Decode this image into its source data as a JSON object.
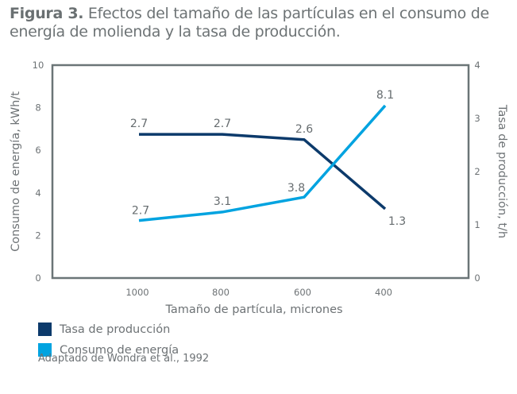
{
  "figure": {
    "label": "Figura 3.",
    "caption": "Efectos del tamaño de las partículas en el consumo de energía de molienda y la tasa de producción.",
    "source": "Adaptado de Wondra et al., 1992"
  },
  "chart_data": {
    "type": "line",
    "title": "Figura 3. Efectos del tamaño de las partículas en el consumo de energía de molienda y la tasa de producción.",
    "xlabel": "Tamaño de partícula, micrones",
    "ylabel": "Consumo de energía, kWh/t",
    "y2label": "Tasa de producción, t/h",
    "categories": [
      "1000",
      "800",
      "600",
      "400"
    ],
    "x": [
      1000,
      800,
      600,
      400
    ],
    "ylim": [
      0,
      10
    ],
    "y2lim": [
      0,
      4
    ],
    "yticks": [
      "0",
      "2",
      "4",
      "6",
      "8",
      "10"
    ],
    "y2ticks": [
      "0",
      "1",
      "2",
      "3",
      "4"
    ],
    "grid": false,
    "legend_position": "bottom-left",
    "series": [
      {
        "name": "Tasa de producción",
        "axis": "right",
        "color": "#0c3a6b",
        "values": [
          2.7,
          2.7,
          2.6,
          1.3
        ],
        "labels": [
          "2.7",
          "2.7",
          "2.6",
          "1.3"
        ]
      },
      {
        "name": "Consumo de energía",
        "axis": "left",
        "color": "#00a3e0",
        "values": [
          2.7,
          3.1,
          3.8,
          8.1
        ],
        "labels": [
          "2.7",
          "3.1",
          "3.8",
          "8.1"
        ]
      }
    ]
  },
  "colors": {
    "frame": "#6b7577",
    "text": "#6d7275"
  }
}
